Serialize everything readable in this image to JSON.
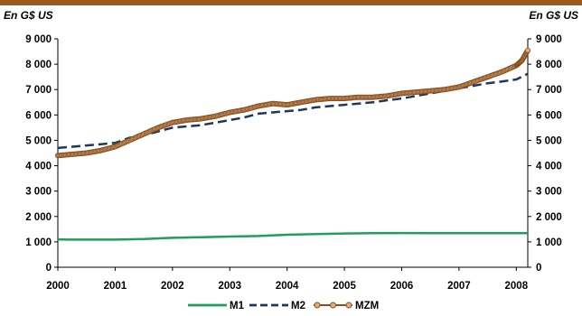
{
  "colors": {
    "top_bar": "#9c5a23",
    "m1": "#1f9e5c",
    "m2": "#1f3858",
    "mzm_line": "#8b4f1e",
    "mzm_marker_fill": "#d8b088",
    "mzm_marker_stroke": "#8b4f1e"
  },
  "chart_data": {
    "type": "line",
    "y_unit_left": "En G$ US",
    "y_unit_right": "En G$ US",
    "ylim": [
      0,
      9000
    ],
    "y_ticks": [
      {
        "value": 0,
        "label": "0"
      },
      {
        "value": 1000,
        "label": "1 000"
      },
      {
        "value": 2000,
        "label": "2 000"
      },
      {
        "value": 3000,
        "label": "3 000"
      },
      {
        "value": 4000,
        "label": "4 000"
      },
      {
        "value": 5000,
        "label": "5 000"
      },
      {
        "value": 6000,
        "label": "6 000"
      },
      {
        "value": 7000,
        "label": "7 000"
      },
      {
        "value": 8000,
        "label": "8 000"
      },
      {
        "value": 9000,
        "label": "9 000"
      }
    ],
    "xlim": [
      2000,
      2008.2
    ],
    "x_ticks": [
      {
        "value": 2000,
        "label": "2000"
      },
      {
        "value": 2001,
        "label": "2001"
      },
      {
        "value": 2002,
        "label": "2002"
      },
      {
        "value": 2003,
        "label": "2003"
      },
      {
        "value": 2004,
        "label": "2004"
      },
      {
        "value": 2005,
        "label": "2005"
      },
      {
        "value": 2006,
        "label": "2006"
      },
      {
        "value": 2007,
        "label": "2007"
      },
      {
        "value": 2008,
        "label": "2008"
      }
    ],
    "grid": false,
    "legend_position": "bottom",
    "series": [
      {
        "name": "M1",
        "style": "solid",
        "x": [
          2000,
          2000.17,
          2000.5,
          2001,
          2001.5,
          2002,
          2002.5,
          2003,
          2003.5,
          2004,
          2004.5,
          2005,
          2005.5,
          2006,
          2006.5,
          2007,
          2007.5,
          2008,
          2008.2
        ],
        "y": [
          1100,
          1090,
          1090,
          1090,
          1110,
          1160,
          1180,
          1210,
          1230,
          1280,
          1310,
          1330,
          1340,
          1350,
          1340,
          1340,
          1340,
          1340,
          1340
        ]
      },
      {
        "name": "M2",
        "style": "dashed",
        "x": [
          2000,
          2000.25,
          2000.5,
          2000.75,
          2001,
          2001.25,
          2001.5,
          2001.75,
          2002,
          2002.25,
          2002.5,
          2002.75,
          2003,
          2003.25,
          2003.5,
          2003.75,
          2004,
          2004.25,
          2004.5,
          2004.75,
          2005,
          2005.25,
          2005.5,
          2005.75,
          2006,
          2006.25,
          2006.5,
          2006.75,
          2007,
          2007.25,
          2007.5,
          2007.75,
          2008,
          2008.2
        ],
        "y": [
          4700,
          4750,
          4800,
          4850,
          4900,
          5100,
          5200,
          5350,
          5500,
          5550,
          5600,
          5700,
          5800,
          5900,
          6050,
          6100,
          6150,
          6200,
          6300,
          6350,
          6400,
          6450,
          6500,
          6580,
          6650,
          6750,
          6850,
          6950,
          7050,
          7150,
          7250,
          7320,
          7400,
          7620
        ]
      },
      {
        "name": "MZM",
        "style": "solid-markers",
        "x": [
          2000,
          2000.25,
          2000.5,
          2000.75,
          2001,
          2001.25,
          2001.5,
          2001.75,
          2002,
          2002.25,
          2002.5,
          2002.75,
          2003,
          2003.25,
          2003.5,
          2003.75,
          2004,
          2004.25,
          2004.5,
          2004.75,
          2005,
          2005.25,
          2005.5,
          2005.75,
          2006,
          2006.25,
          2006.5,
          2006.75,
          2007,
          2007.25,
          2007.5,
          2007.75,
          2008,
          2008.1,
          2008.2
        ],
        "y": [
          4400,
          4450,
          4500,
          4600,
          4750,
          5000,
          5250,
          5500,
          5700,
          5800,
          5850,
          5950,
          6100,
          6200,
          6350,
          6450,
          6400,
          6500,
          6600,
          6650,
          6650,
          6700,
          6700,
          6750,
          6850,
          6900,
          6950,
          7000,
          7100,
          7300,
          7500,
          7700,
          7950,
          8150,
          8550
        ]
      }
    ]
  }
}
